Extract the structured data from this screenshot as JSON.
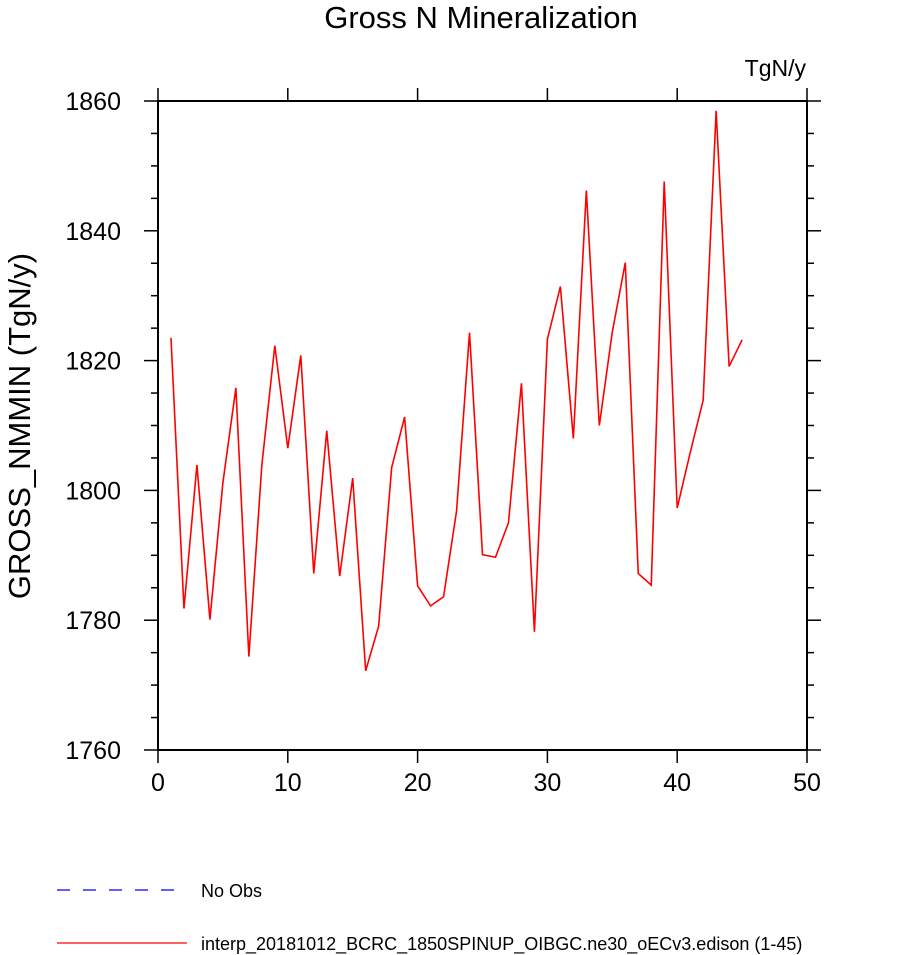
{
  "chart_data": {
    "type": "line",
    "title": "Gross N Mineralization",
    "units": "TgN/y",
    "ylabel": "GROSS_NMMIN  (TgN/y)",
    "xlabel": "",
    "xlim": [
      0,
      50
    ],
    "ylim": [
      1760,
      1860
    ],
    "x_ticks": [
      0,
      10,
      20,
      30,
      40,
      50
    ],
    "y_ticks": [
      1760,
      1780,
      1800,
      1820,
      1840,
      1860
    ],
    "grid": false,
    "series": [
      {
        "name": "interp_20181012_BCRC_1850SPINUP_OIBGC.ne30_oECv3.edison (1-45)",
        "color": "#ff0000",
        "style": "solid",
        "x": [
          1,
          2,
          3,
          4,
          5,
          6,
          7,
          8,
          9,
          10,
          11,
          12,
          13,
          14,
          15,
          16,
          17,
          18,
          19,
          20,
          21,
          22,
          23,
          24,
          25,
          26,
          27,
          28,
          29,
          30,
          31,
          32,
          33,
          34,
          35,
          36,
          37,
          38,
          39,
          40,
          41,
          42,
          43,
          44,
          45
        ],
        "y": [
          1823.5,
          1781.8,
          1803.9,
          1780.1,
          1801.2,
          1815.8,
          1774.4,
          1803.9,
          1822.3,
          1806.5,
          1820.8,
          1787.2,
          1809.2,
          1786.8,
          1801.9,
          1772.2,
          1779.1,
          1803.5,
          1811.3,
          1785.3,
          1782.2,
          1783.6,
          1796.8,
          1824.3,
          1790.1,
          1789.7,
          1795.0,
          1816.5,
          1778.2,
          1823.3,
          1831.4,
          1808.0,
          1846.2,
          1810.0,
          1824.4,
          1835.1,
          1787.2,
          1785.4,
          1847.6,
          1797.3,
          1805.8,
          1813.9,
          1858.5,
          1819.1,
          1823.2
        ]
      }
    ],
    "legend": {
      "placement": "bottom-left",
      "entries": [
        {
          "label": "No Obs",
          "color": "#0000ff",
          "style": "dashed"
        },
        {
          "label": "interp_20181012_BCRC_1850SPINUP_OIBGC.ne30_oECv3.edison (1-45)",
          "color": "#ff0000",
          "style": "solid"
        }
      ]
    }
  }
}
